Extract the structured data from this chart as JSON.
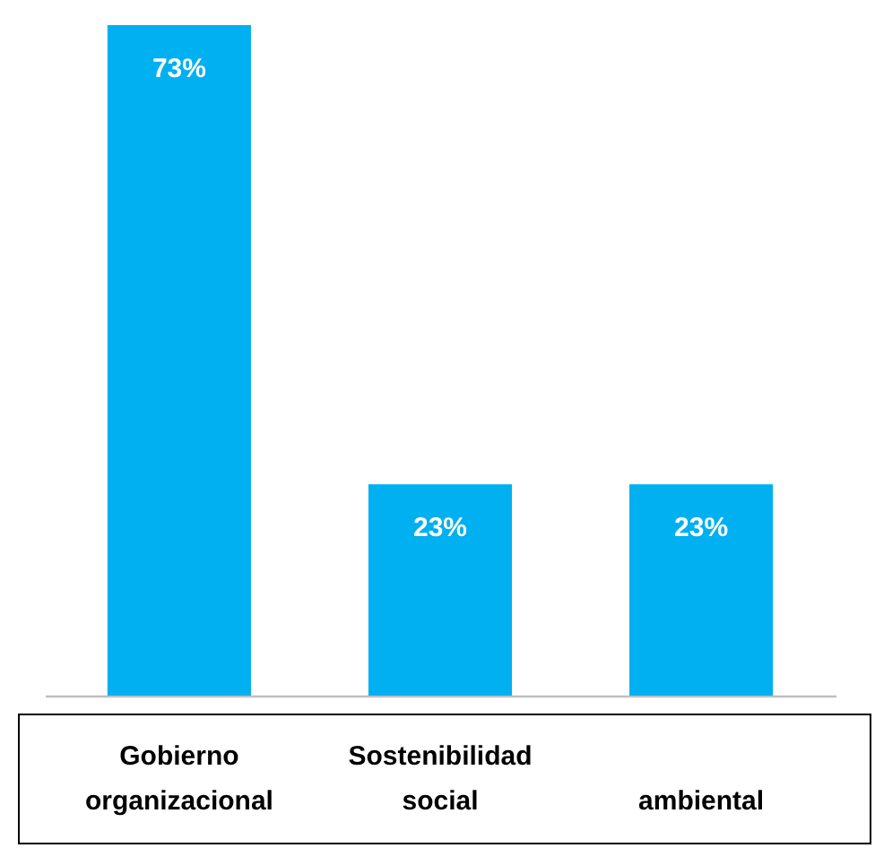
{
  "chart_data": {
    "type": "bar",
    "categories": [
      "Gobierno\norganizacional",
      "Sostenibilidad\nsocial",
      "ambiental"
    ],
    "values": [
      73,
      23,
      23
    ],
    "color": "#00b0f0",
    "data_labels": true,
    "value_labels": [
      "73%",
      "23%",
      "23%"
    ]
  }
}
